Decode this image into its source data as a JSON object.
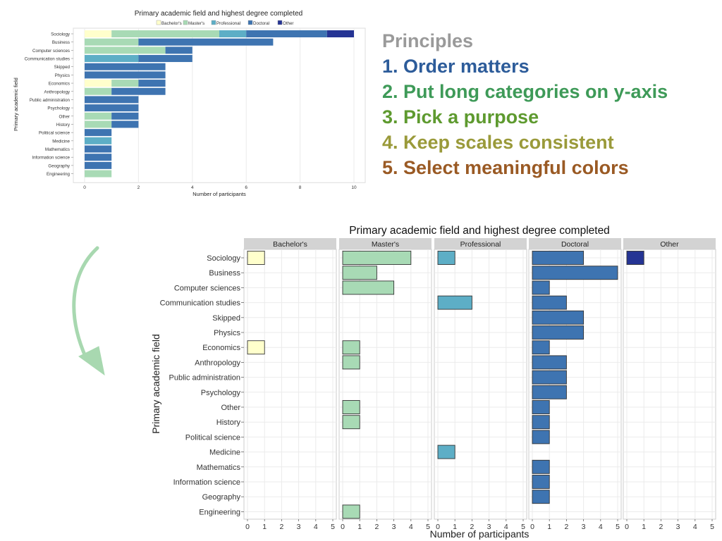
{
  "colors": {
    "bachelors": "#FFFFCC",
    "masters": "#A8DAB5",
    "professional": "#5DAEC6",
    "doctoral": "#3E74B1",
    "other": "#253494",
    "strip_bg": "#D3D3D3",
    "grid": "#EBEBEB",
    "arrow": "#A8D8B0"
  },
  "principles": {
    "heading": "Principles",
    "items": [
      {
        "text": "1. Order matters",
        "color": "#2D5C9A"
      },
      {
        "text": "2. Put long categories on y-axis",
        "color": "#3E9A58"
      },
      {
        "text": "3. Pick a purpose",
        "color": "#5E9A2F"
      },
      {
        "text": "4. Keep scales consistent",
        "color": "#9A9A3A"
      },
      {
        "text": "5. Select meaningful colors",
        "color": "#9A5A24"
      }
    ],
    "heading_color": "#9A9A9A"
  },
  "chart_data": [
    {
      "type": "bar",
      "orientation": "horizontal",
      "stacked": true,
      "title": "Primary academic field and highest degree completed",
      "xlabel": "Number of participants",
      "ylabel": "Primary academic field",
      "xlim": [
        0,
        10
      ],
      "xticks": [
        0,
        2,
        4,
        6,
        8,
        10
      ],
      "legend_position": "top",
      "categories": [
        "Sociology",
        "Business",
        "Computer sciences",
        "Communication studies",
        "Skipped",
        "Physics",
        "Economics",
        "Anthropology",
        "Public administration",
        "Psychology",
        "Other",
        "History",
        "Political science",
        "Medicine",
        "Mathematics",
        "Information science",
        "Geography",
        "Engineering"
      ],
      "series": [
        {
          "name": "Bachelor's",
          "values": [
            1,
            0,
            0,
            0,
            0,
            0,
            1,
            0,
            0,
            0,
            0,
            0,
            0,
            0,
            0,
            0,
            0,
            0
          ]
        },
        {
          "name": "Master's",
          "values": [
            4,
            2,
            3,
            0,
            0,
            0,
            1,
            1,
            0,
            0,
            1,
            1,
            0,
            0,
            0,
            0,
            0,
            1
          ]
        },
        {
          "name": "Professional",
          "values": [
            1,
            0,
            0,
            2,
            0,
            0,
            0,
            0,
            0,
            0,
            0,
            0,
            0,
            1,
            0,
            0,
            0,
            0
          ]
        },
        {
          "name": "Doctoral",
          "values": [
            3,
            5,
            1,
            2,
            3,
            3,
            1,
            2,
            2,
            2,
            1,
            1,
            1,
            0,
            1,
            1,
            1,
            0
          ]
        },
        {
          "name": "Other",
          "values": [
            1,
            0,
            0,
            0,
            0,
            0,
            0,
            0,
            0,
            0,
            0,
            0,
            0,
            0,
            0,
            0,
            0,
            0
          ]
        }
      ]
    },
    {
      "type": "bar",
      "orientation": "horizontal",
      "faceted": true,
      "title": "Primary academic field and highest degree completed",
      "xlabel": "Number of participants",
      "ylabel": "Primary academic field",
      "xlim": [
        0,
        5
      ],
      "xticks": [
        0,
        1,
        2,
        3,
        4,
        5
      ],
      "facets": [
        "Bachelor's",
        "Master's",
        "Professional",
        "Doctoral",
        "Other"
      ],
      "categories": [
        "Sociology",
        "Business",
        "Computer sciences",
        "Communication studies",
        "Skipped",
        "Physics",
        "Economics",
        "Anthropology",
        "Public administration",
        "Psychology",
        "Other",
        "History",
        "Political science",
        "Medicine",
        "Mathematics",
        "Information science",
        "Geography",
        "Engineering"
      ],
      "series": [
        {
          "name": "Bachelor's",
          "values": [
            1,
            0,
            0,
            0,
            0,
            0,
            1,
            0,
            0,
            0,
            0,
            0,
            0,
            0,
            0,
            0,
            0,
            0
          ]
        },
        {
          "name": "Master's",
          "values": [
            4,
            2,
            3,
            0,
            0,
            0,
            1,
            1,
            0,
            0,
            1,
            1,
            0,
            0,
            0,
            0,
            0,
            1
          ]
        },
        {
          "name": "Professional",
          "values": [
            1,
            0,
            0,
            2,
            0,
            0,
            0,
            0,
            0,
            0,
            0,
            0,
            0,
            1,
            0,
            0,
            0,
            0
          ]
        },
        {
          "name": "Doctoral",
          "values": [
            3,
            5,
            1,
            2,
            3,
            3,
            1,
            2,
            2,
            2,
            1,
            1,
            1,
            0,
            1,
            1,
            1,
            0
          ]
        },
        {
          "name": "Other",
          "values": [
            1,
            0,
            0,
            0,
            0,
            0,
            0,
            0,
            0,
            0,
            0,
            0,
            0,
            0,
            0,
            0,
            0,
            0
          ]
        }
      ]
    }
  ]
}
